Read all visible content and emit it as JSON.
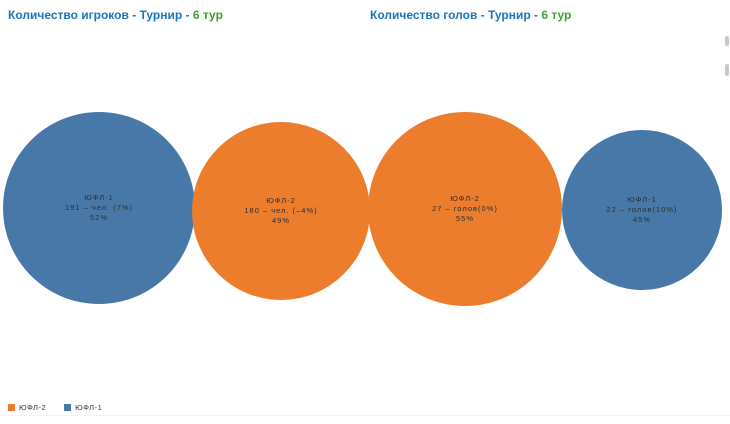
{
  "titles": {
    "players": {
      "main": "Количество игроков - Турнир - ",
      "accent": "6 тур"
    },
    "goals": {
      "main": "Количество голов - Турнир - ",
      "accent": "6 тур"
    }
  },
  "bubbles": [
    {
      "label": "ЮФЛ-1",
      "value_line": "191 – чел. (7%)",
      "percent": "52%",
      "color": "#4878a8"
    },
    {
      "label": "ЮФЛ-2",
      "value_line": "180 – чел. (–4%)",
      "percent": "49%",
      "color": "#ec7d2d"
    },
    {
      "label": "ЮФЛ-2",
      "value_line": "27 – голов(0%)",
      "percent": "55%",
      "color": "#ec7d2d"
    },
    {
      "label": "ЮФЛ-1",
      "value_line": "22 – голов(10%)",
      "percent": "45%",
      "color": "#4878a8"
    }
  ],
  "legend": {
    "items": [
      {
        "label": "ЮФЛ-2",
        "color": "#ec7d2d"
      },
      {
        "label": "ЮФЛ-1",
        "color": "#4878a8"
      }
    ]
  },
  "colors": {
    "title_blue": "#1b75bb",
    "title_green": "#3ea32e",
    "series_yufl2_orange": "#ec7d2d",
    "series_yufl1_blue": "#4878a8"
  },
  "chart_data": [
    {
      "type": "pie",
      "title": "Количество игроков - Турнир - 6 тур",
      "labels": [
        "ЮФЛ-1",
        "ЮФЛ-2"
      ],
      "values": [
        191,
        180
      ],
      "unit": "чел.",
      "percentages": [
        52,
        49
      ],
      "change_vs_prev": [
        "7%",
        "-4%"
      ],
      "legend_position": "bottom-left"
    },
    {
      "type": "pie",
      "title": "Количество голов - Турнир - 6 тур",
      "labels": [
        "ЮФЛ-2",
        "ЮФЛ-1"
      ],
      "values": [
        27,
        22
      ],
      "unit": "голов",
      "percentages": [
        55,
        45
      ],
      "change_vs_prev": [
        "0%",
        "10%"
      ],
      "legend_position": "bottom-left"
    }
  ]
}
